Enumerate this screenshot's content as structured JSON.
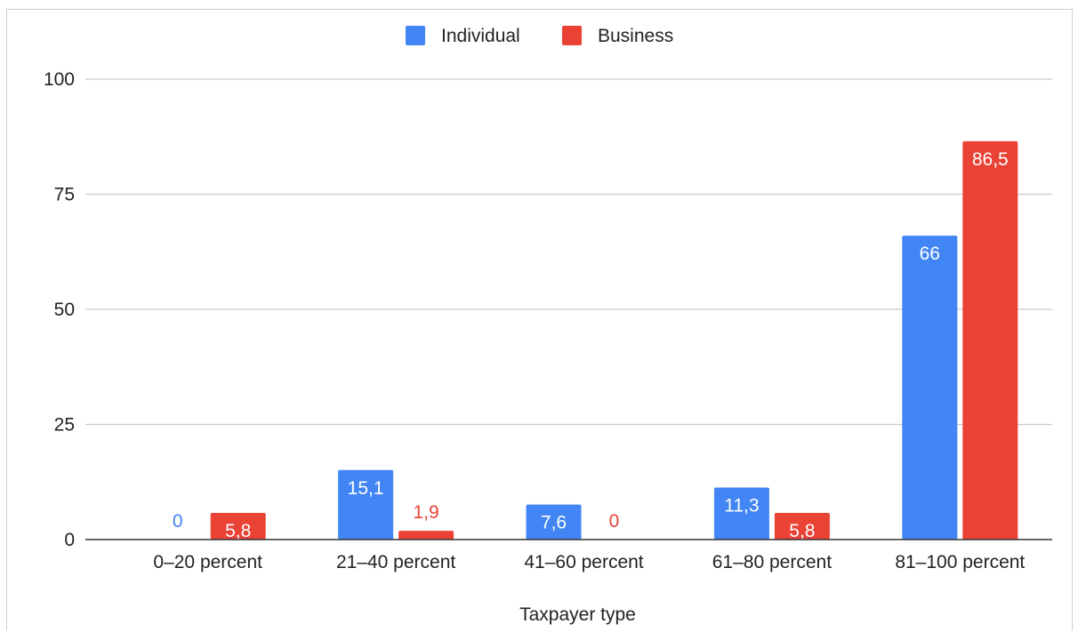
{
  "chart_data": {
    "type": "bar",
    "title": "",
    "xlabel": "Taxpayer type",
    "ylabel": "",
    "ylim": [
      0,
      100
    ],
    "yticks": [
      0,
      25,
      50,
      75,
      100
    ],
    "categories": [
      "0–20 percent",
      "21–40 percent",
      "41–60 percent",
      "61–80 percent",
      "81–100 percent"
    ],
    "series": [
      {
        "name": "Individual",
        "color": "#4285f4",
        "values": [
          0,
          15.1,
          7.6,
          11.3,
          66
        ],
        "labels": [
          "0",
          "15,1",
          "7,6",
          "11,3",
          "66"
        ]
      },
      {
        "name": "Business",
        "color": "#ea4335",
        "values": [
          5.8,
          1.9,
          0,
          5.8,
          86.5
        ],
        "labels": [
          "5,8",
          "1,9",
          "0",
          "5,8",
          "86,5"
        ]
      }
    ],
    "legend_position": "top",
    "grid": true
  }
}
